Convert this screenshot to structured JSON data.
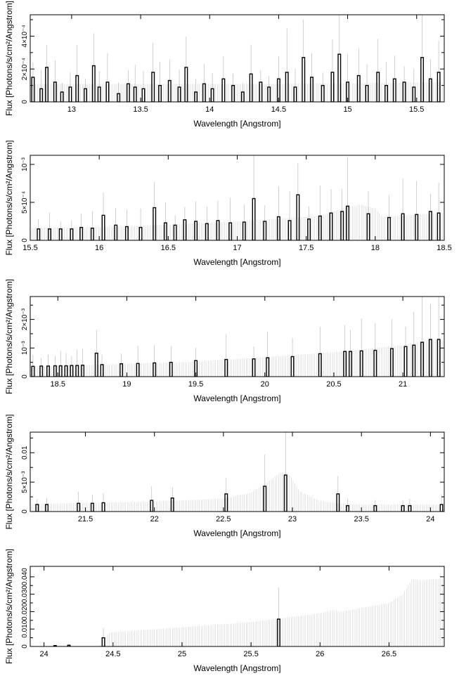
{
  "chart_data": [
    {
      "type": "bar",
      "xlabel": "Wavelength [Angstrom]",
      "ylabel": "Flux [Photons/s/cm²/Angstrom]",
      "xlim": [
        12.7,
        15.7
      ],
      "ylim": [
        0,
        0.00053
      ],
      "xticks": [
        13,
        13.5,
        14,
        14.5,
        15,
        15.5
      ],
      "xtick_labels": [
        "13",
        "13.5",
        "14",
        "14.5",
        "15",
        "15.5"
      ],
      "yticks": [
        0,
        0.0001,
        0.0002,
        0.0003,
        0.0004,
        0.0005
      ],
      "ytick_labels": [
        "0",
        "",
        "2×10⁻⁴",
        "",
        "4×10⁻⁴",
        ""
      ],
      "model": [
        [
          12.7,
          0.00011
        ],
        [
          14.5,
          0.00011
        ],
        [
          15.7,
          0.00012
        ]
      ],
      "bars": [
        [
          12.72,
          0.00015
        ],
        [
          12.78,
          8e-05
        ],
        [
          12.82,
          0.00021
        ],
        [
          12.88,
          0.00012
        ],
        [
          12.93,
          6e-05
        ],
        [
          12.99,
          9e-05
        ],
        [
          13.04,
          0.00016
        ],
        [
          13.1,
          8e-05
        ],
        [
          13.16,
          0.00022
        ],
        [
          13.2,
          9e-05
        ],
        [
          13.26,
          0.00012
        ],
        [
          13.34,
          5e-05
        ],
        [
          13.41,
          0.00011
        ],
        [
          13.46,
          9e-05
        ],
        [
          13.52,
          8e-05
        ],
        [
          13.59,
          0.00018
        ],
        [
          13.64,
          0.0001
        ],
        [
          13.71,
          0.00013
        ],
        [
          13.78,
          9e-05
        ],
        [
          13.83,
          0.00021
        ],
        [
          13.9,
          6e-05
        ],
        [
          13.96,
          0.00011
        ],
        [
          14.02,
          8e-05
        ],
        [
          14.1,
          0.00014
        ],
        [
          14.17,
          0.0001
        ],
        [
          14.24,
          6e-05
        ],
        [
          14.3,
          0.00017
        ],
        [
          14.37,
          0.00012
        ],
        [
          14.43,
          9e-05
        ],
        [
          14.5,
          0.00014
        ],
        [
          14.56,
          0.00018
        ],
        [
          14.62,
          9e-05
        ],
        [
          14.68,
          0.00027
        ],
        [
          14.74,
          0.00015
        ],
        [
          14.82,
          0.0001
        ],
        [
          14.89,
          0.00018
        ],
        [
          14.94,
          0.00029
        ],
        [
          15.0,
          0.00012
        ],
        [
          15.08,
          0.00016
        ],
        [
          15.14,
          0.0001
        ],
        [
          15.22,
          0.00018
        ],
        [
          15.28,
          0.0001
        ],
        [
          15.34,
          0.00014
        ],
        [
          15.41,
          0.00012
        ],
        [
          15.48,
          9e-05
        ],
        [
          15.54,
          0.00027
        ],
        [
          15.6,
          0.00014
        ],
        [
          15.66,
          0.00018
        ]
      ]
    },
    {
      "type": "bar",
      "xlabel": "Wavelength [Angstrom]",
      "ylabel": "Flux [Photons/s/cm²/Angstrom]",
      "xlim": [
        15.5,
        18.5
      ],
      "ylim": [
        0,
        0.00112
      ],
      "xticks": [
        15.5,
        16,
        16.5,
        17,
        17.5,
        18,
        18.5
      ],
      "xtick_labels": [
        "15.5",
        "16",
        "16.5",
        "17",
        "17.5",
        "18",
        "18.5"
      ],
      "yticks": [
        0,
        0.0005,
        0.001
      ],
      "ytick_labels": [
        "0",
        "5×10⁻⁴",
        "10⁻³"
      ],
      "model": [
        [
          15.5,
          0.00016
        ],
        [
          16.3,
          0.00019
        ],
        [
          17.0,
          0.00025
        ],
        [
          17.6,
          0.00032
        ],
        [
          17.8,
          0.00044
        ],
        [
          17.9,
          0.00047
        ],
        [
          18.0,
          0.00042
        ],
        [
          18.05,
          0.00031
        ],
        [
          18.5,
          0.00036
        ]
      ],
      "bars": [
        [
          15.56,
          0.00015
        ],
        [
          15.64,
          0.00015
        ],
        [
          15.72,
          0.00015
        ],
        [
          15.8,
          0.00015
        ],
        [
          15.87,
          0.00017
        ],
        [
          15.95,
          0.00016
        ],
        [
          16.03,
          0.00033
        ],
        [
          16.12,
          0.0002
        ],
        [
          16.2,
          0.00018
        ],
        [
          16.3,
          0.00017
        ],
        [
          16.4,
          0.00043
        ],
        [
          16.48,
          0.00023
        ],
        [
          16.55,
          0.0002
        ],
        [
          16.62,
          0.00027
        ],
        [
          16.7,
          0.00025
        ],
        [
          16.78,
          0.00022
        ],
        [
          16.86,
          0.00026
        ],
        [
          16.95,
          0.00023
        ],
        [
          17.05,
          0.00024
        ],
        [
          17.12,
          0.00055
        ],
        [
          17.2,
          0.00025
        ],
        [
          17.3,
          0.00031
        ],
        [
          17.38,
          0.00026
        ],
        [
          17.44,
          0.0006
        ],
        [
          17.52,
          0.00028
        ],
        [
          17.6,
          0.00032
        ],
        [
          17.68,
          0.00036
        ],
        [
          17.76,
          0.00038
        ],
        [
          17.8,
          0.00045
        ],
        [
          17.95,
          0.00035
        ],
        [
          18.1,
          0.0003
        ],
        [
          18.2,
          0.00035
        ],
        [
          18.3,
          0.00034
        ],
        [
          18.4,
          0.00038
        ],
        [
          18.46,
          0.00036
        ]
      ]
    },
    {
      "type": "bar",
      "xlabel": "Wavelength [Angstrom]",
      "ylabel": "Flux [Photons/s/cm²/Angstrom]",
      "xlim": [
        18.3,
        21.3
      ],
      "ylim": [
        0,
        0.0028
      ],
      "xticks": [
        18.5,
        19,
        19.5,
        20,
        20.5,
        21
      ],
      "xtick_labels": [
        "18.5",
        "19",
        "19.5",
        "20",
        "20.5",
        "21"
      ],
      "yticks": [
        0,
        0.0005,
        0.001,
        0.0015,
        0.002,
        0.0025
      ],
      "ytick_labels": [
        "0",
        "",
        "10⁻³",
        "",
        "2×10⁻³",
        ""
      ],
      "model": [
        [
          18.3,
          0.00035
        ],
        [
          19.5,
          0.00052
        ],
        [
          20.5,
          0.00085
        ],
        [
          21.0,
          0.0011
        ],
        [
          21.2,
          0.0013
        ],
        [
          21.3,
          0.00125
        ]
      ],
      "bars": [
        [
          18.32,
          0.00036
        ],
        [
          18.38,
          0.00037
        ],
        [
          18.43,
          0.00037
        ],
        [
          18.48,
          0.00038
        ],
        [
          18.52,
          0.00038
        ],
        [
          18.56,
          0.00038
        ],
        [
          18.6,
          0.00039
        ],
        [
          18.64,
          0.00039
        ],
        [
          18.68,
          0.0004
        ],
        [
          18.78,
          0.00082
        ],
        [
          18.82,
          0.00042
        ],
        [
          18.96,
          0.00045
        ],
        [
          19.08,
          0.00046
        ],
        [
          19.2,
          0.00048
        ],
        [
          19.32,
          0.0005
        ],
        [
          19.5,
          0.00056
        ],
        [
          19.72,
          0.0006
        ],
        [
          19.92,
          0.00062
        ],
        [
          20.02,
          0.00066
        ],
        [
          20.2,
          0.0007
        ],
        [
          20.4,
          0.0008
        ],
        [
          20.58,
          0.00088
        ],
        [
          20.62,
          0.00088
        ],
        [
          20.7,
          0.0009
        ],
        [
          20.8,
          0.00092
        ],
        [
          20.92,
          0.00098
        ],
        [
          21.02,
          0.00105
        ],
        [
          21.08,
          0.0011
        ],
        [
          21.14,
          0.0012
        ],
        [
          21.2,
          0.0013
        ],
        [
          21.26,
          0.0013
        ]
      ]
    },
    {
      "type": "bar",
      "xlabel": "Wavelength [Angstrom]",
      "ylabel": "Flux [Photons/s/cm²/Angstrom]",
      "xlim": [
        21.1,
        24.1
      ],
      "ylim": [
        0,
        0.0135
      ],
      "xticks": [
        21.5,
        22,
        22.5,
        23,
        23.5,
        24
      ],
      "xtick_labels": [
        "21.5",
        "22",
        "22.5",
        "23",
        "23.5",
        "24"
      ],
      "yticks": [
        0,
        0.0025,
        0.005,
        0.0075,
        0.01,
        0.0125
      ],
      "ytick_labels": [
        "0",
        "",
        "5×10⁻³",
        "",
        "0.01",
        ""
      ],
      "model": [
        [
          21.1,
          0.0013
        ],
        [
          22.0,
          0.0017
        ],
        [
          22.5,
          0.0022
        ],
        [
          22.7,
          0.0032
        ],
        [
          22.85,
          0.0055
        ],
        [
          22.92,
          0.0067
        ],
        [
          22.97,
          0.0065
        ],
        [
          23.05,
          0.0035
        ],
        [
          23.2,
          0.0018
        ],
        [
          23.4,
          0.0012
        ],
        [
          24.1,
          0.0012
        ]
      ],
      "bars": [
        [
          21.15,
          0.0012
        ],
        [
          21.22,
          0.0012
        ],
        [
          21.45,
          0.0014
        ],
        [
          21.55,
          0.0014
        ],
        [
          21.63,
          0.0015
        ],
        [
          21.98,
          0.0019
        ],
        [
          22.13,
          0.0023
        ],
        [
          22.52,
          0.003
        ],
        [
          22.8,
          0.0043
        ],
        [
          22.95,
          0.0062
        ],
        [
          23.33,
          0.003
        ],
        [
          23.4,
          0.001
        ],
        [
          23.6,
          0.001
        ],
        [
          23.8,
          0.001
        ],
        [
          23.85,
          0.001
        ],
        [
          24.08,
          0.0012
        ]
      ]
    },
    {
      "type": "bar",
      "xlabel": "Wavelength [Angstrom]",
      "ylabel": "Flux [Photons/s/cm²/Angstrom]",
      "xlim": [
        23.9,
        26.9
      ],
      "ylim": [
        0,
        0.046
      ],
      "xticks": [
        24,
        24.5,
        25,
        25.5,
        26,
        26.5
      ],
      "xtick_labels": [
        "24",
        "24.5",
        "25",
        "25.5",
        "26",
        "26.5"
      ],
      "yticks": [
        0,
        0.005,
        0.01,
        0.015,
        0.02,
        0.025,
        0.03,
        0.035,
        0.04
      ],
      "ytick_labels": [
        "0",
        "",
        "0.010",
        "",
        "0.020",
        "",
        "0.030",
        "",
        "0.040"
      ],
      "model": [
        [
          23.9,
          0.0
        ],
        [
          24.4,
          0.0
        ],
        [
          24.47,
          0.008
        ],
        [
          25.0,
          0.011
        ],
        [
          25.5,
          0.014
        ],
        [
          26.0,
          0.019
        ],
        [
          26.1,
          0.021
        ],
        [
          26.15,
          0.02
        ],
        [
          26.5,
          0.025
        ],
        [
          26.6,
          0.03
        ],
        [
          26.67,
          0.039
        ],
        [
          26.72,
          0.038
        ],
        [
          26.9,
          0.039
        ]
      ],
      "bars": [
        [
          24.08,
          0.0005
        ],
        [
          24.18,
          0.0007
        ],
        [
          24.43,
          0.005
        ],
        [
          25.7,
          0.0157
        ]
      ]
    }
  ]
}
